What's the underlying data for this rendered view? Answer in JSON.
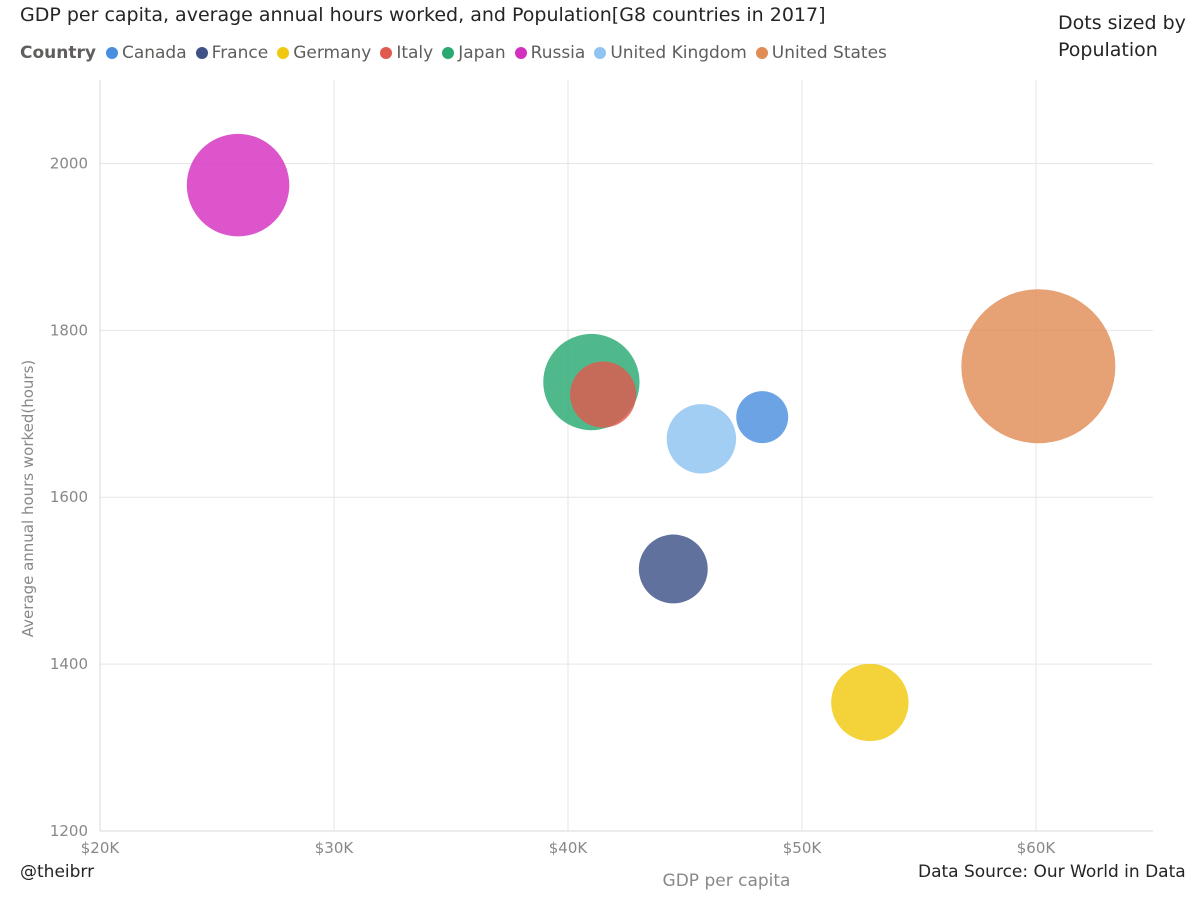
{
  "chart_data": {
    "type": "scatter",
    "title": "GDP per capita, average annual hours worked, and Population[G8 countries in 2017]",
    "legend_title": "Country",
    "legend_position": "top-left",
    "size_note_line1": "Dots sized by",
    "size_note_line2": "Population",
    "xlabel": "GDP per capita",
    "ylabel": "Average annual hours worked(hours)",
    "xlim": [
      20000,
      65000
    ],
    "ylim": [
      1200,
      2100
    ],
    "xticks": [
      {
        "value": 20000,
        "label": "$20K"
      },
      {
        "value": 30000,
        "label": "$30K"
      },
      {
        "value": 40000,
        "label": "$40K"
      },
      {
        "value": 50000,
        "label": "$50K"
      },
      {
        "value": 60000,
        "label": "$60K"
      }
    ],
    "yticks": [
      {
        "value": 1200,
        "label": "1200"
      },
      {
        "value": 1400,
        "label": "1400"
      },
      {
        "value": 1600,
        "label": "1600"
      },
      {
        "value": 1800,
        "label": "1800"
      },
      {
        "value": 2000,
        "label": "2000"
      }
    ],
    "grid": true,
    "size_variable": "Population",
    "series": [
      {
        "name": "Canada",
        "color": "#4a8fdf",
        "x": 48300,
        "y": 1696,
        "population_millions": 37
      },
      {
        "name": "France",
        "color": "#3e5287",
        "x": 44500,
        "y": 1514,
        "population_millions": 65
      },
      {
        "name": "Germany",
        "color": "#f0c80f",
        "x": 52900,
        "y": 1354,
        "population_millions": 82
      },
      {
        "name": "Italy",
        "color": "#e05a4f",
        "x": 41500,
        "y": 1723,
        "population_millions": 60
      },
      {
        "name": "Japan",
        "color": "#2aaa72",
        "x": 41000,
        "y": 1738,
        "population_millions": 127
      },
      {
        "name": "Russia",
        "color": "#d430bf",
        "x": 25900,
        "y": 1974,
        "population_millions": 144
      },
      {
        "name": "United Kingdom",
        "color": "#8fc3f0",
        "x": 45700,
        "y": 1670,
        "population_millions": 66
      },
      {
        "name": "United States",
        "color": "#e08c55",
        "x": 60100,
        "y": 1757,
        "population_millions": 325
      }
    ]
  },
  "footer": {
    "handle": "@theibrr",
    "source": "Data Source: Our World in Data"
  }
}
